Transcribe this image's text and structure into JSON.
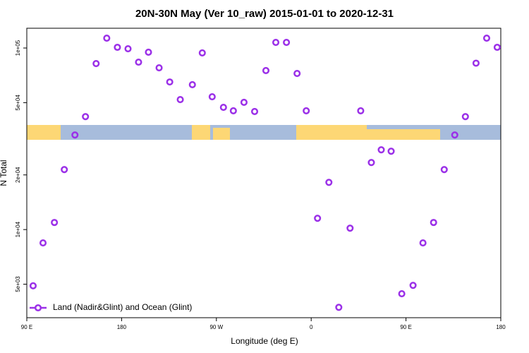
{
  "chart_data": {
    "type": "scatter",
    "title": "20N-30N May (Ver 10_raw)   2015-01-01 to 2020-12-31",
    "x_label": "Longitude (deg E)",
    "y_label": "N Total",
    "xlim": [
      90,
      540
    ],
    "xticks": [
      {
        "value": 90,
        "label": "90 E"
      },
      {
        "value": 180,
        "label": "180"
      },
      {
        "value": 270,
        "label": "90 W"
      },
      {
        "value": 360,
        "label": "0"
      },
      {
        "value": 450,
        "label": "90 E"
      },
      {
        "value": 540,
        "label": "180"
      }
    ],
    "ylim": [
      3270,
      128500
    ],
    "log_y": true,
    "yticks": [
      {
        "value": 5000,
        "label": "5e+03"
      },
      {
        "value": 10000,
        "label": "1e+04"
      },
      {
        "value": 20000,
        "label": "2e+04"
      },
      {
        "value": 50000,
        "label": "5e+04"
      },
      {
        "value": 100000,
        "label": "1e+05"
      }
    ],
    "legend_position": "bottom-left",
    "series": [
      {
        "name": "Land (Nadir&Glint) and Ocean (Glint)",
        "color": "#9b30e8",
        "x": [
          96,
          105.4,
          116.2,
          125.6,
          135.7,
          145.7,
          155.8,
          165.9,
          176,
          186.1,
          196.1,
          205.5,
          215.6,
          225.7,
          235.7,
          247.2,
          256.6,
          266,
          276.7,
          286.1,
          296.2,
          306.3,
          317,
          326.4,
          336.5,
          346.6,
          355.3,
          366,
          376.8,
          386.2,
          396.9,
          407,
          417.1,
          426.5,
          435.9,
          446,
          456.7,
          466.1,
          476.2,
          486.3,
          496.3,
          506.4,
          516.5,
          526.6,
          536.6
        ],
        "values": [
          4900,
          8440,
          10940,
          21400,
          33200,
          41900,
          82100,
          113300,
          100900,
          99100,
          83600,
          94800,
          77800,
          65000,
          52000,
          62800,
          94000,
          53900,
          47100,
          45100,
          50200,
          44700,
          75100,
          107400,
          107400,
          72400,
          45100,
          11540,
          18200,
          3730,
          10180,
          45100,
          23400,
          27500,
          27000,
          4430,
          4930,
          8440,
          10940,
          21400,
          33200,
          41900,
          82500,
          113300,
          100900
        ]
      }
    ]
  }
}
